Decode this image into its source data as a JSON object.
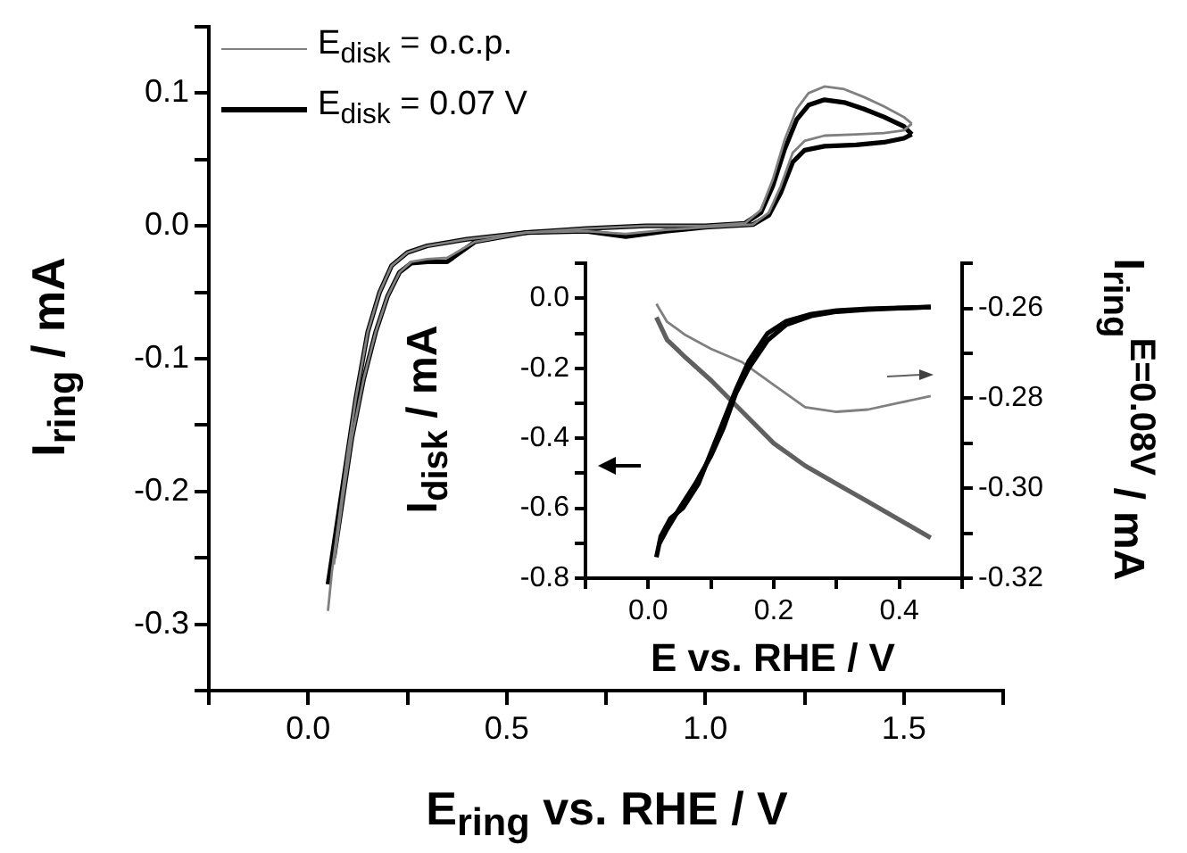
{
  "chart_data": [
    {
      "type": "line",
      "xlabel": "E$_{ring}$ vs. RHE / V",
      "ylabel": "I$_{ring}$ / mA",
      "xlim": [
        -0.25,
        1.75
      ],
      "xticks": [
        {
          "value": -0.25,
          "label": null
        },
        {
          "value": 0,
          "label": "0.0"
        },
        {
          "value": 0.25,
          "label": null
        },
        {
          "value": 0.5,
          "label": "0.5"
        },
        {
          "value": 0.75,
          "label": null
        },
        {
          "value": 1,
          "label": "1.0"
        },
        {
          "value": 1.25,
          "label": null
        },
        {
          "value": 1.5,
          "label": "1.5"
        },
        {
          "value": 1.75,
          "label": null
        }
      ],
      "ylim": [
        -0.35,
        0.15
      ],
      "yticks": [
        {
          "value": -0.35,
          "label": null
        },
        -0.3,
        {
          "value": -0.25,
          "label": null
        },
        -0.2,
        {
          "value": -0.15,
          "label": null
        },
        -0.1,
        {
          "value": -0.05,
          "label": null
        },
        {
          "value": 0,
          "label": "0.0"
        },
        {
          "value": 0.05,
          "label": null
        },
        0.1,
        {
          "value": 0.15,
          "label": null
        }
      ],
      "grid": false,
      "legend": "top left",
      "marker": "none",
      "line_style": "solid",
      "series": [
        {
          "name": "E$_{disk}$ = o.c.p.",
          "color": "#808080",
          "x": [
            0.05,
            0.06,
            0.08,
            0.1,
            0.12,
            0.15,
            0.18,
            0.21,
            0.25,
            0.3,
            0.4,
            0.55,
            0.7,
            0.85,
            1.0,
            1.1,
            1.14,
            1.17,
            1.2,
            1.23,
            1.26,
            1.3,
            1.35,
            1.4,
            1.45,
            1.5,
            1.52
          ],
          "values": [
            -0.29,
            -0.26,
            -0.215,
            -0.17,
            -0.13,
            -0.08,
            -0.05,
            -0.03,
            -0.02,
            -0.015,
            -0.01,
            -0.005,
            -0.002,
            0.0,
            0.0,
            0.002,
            0.012,
            0.035,
            0.065,
            0.088,
            0.1,
            0.105,
            0.103,
            0.097,
            0.09,
            0.082,
            0.077
          ]
        },
        {
          "color": "#808080",
          "x": [
            0.065,
            0.085,
            0.11,
            0.14,
            0.17,
            0.2,
            0.23,
            0.26,
            0.3,
            0.35,
            0.42,
            0.55,
            0.7,
            0.8,
            0.9,
            1.0,
            1.12,
            1.16,
            1.19,
            1.22,
            1.25,
            1.3,
            1.38,
            1.45,
            1.5,
            1.52
          ],
          "values": [
            -0.255,
            -0.21,
            -0.16,
            -0.115,
            -0.08,
            -0.053,
            -0.035,
            -0.027,
            -0.025,
            -0.024,
            -0.012,
            -0.005,
            -0.004,
            -0.006,
            -0.003,
            -0.001,
            0.001,
            0.01,
            0.03,
            0.055,
            0.064,
            0.068,
            0.069,
            0.07,
            0.072,
            0.077
          ]
        },
        {
          "name": "E$_{disk}$ = 0.07 V",
          "color": "#000000",
          "x": [
            0.05,
            0.06,
            0.08,
            0.1,
            0.12,
            0.15,
            0.18,
            0.21,
            0.25,
            0.3,
            0.4,
            0.55,
            0.7,
            0.85,
            1.0,
            1.1,
            1.14,
            1.17,
            1.2,
            1.23,
            1.26,
            1.3,
            1.35,
            1.4,
            1.45,
            1.5,
            1.52
          ],
          "values": [
            -0.27,
            -0.25,
            -0.21,
            -0.17,
            -0.13,
            -0.08,
            -0.05,
            -0.03,
            -0.02,
            -0.015,
            -0.01,
            -0.005,
            -0.002,
            0.0,
            0.0,
            0.002,
            0.01,
            0.03,
            0.058,
            0.08,
            0.091,
            0.095,
            0.093,
            0.088,
            0.082,
            0.075,
            0.069
          ]
        },
        {
          "color": "#000000",
          "x": [
            0.065,
            0.085,
            0.11,
            0.14,
            0.17,
            0.2,
            0.23,
            0.26,
            0.3,
            0.35,
            0.42,
            0.55,
            0.7,
            0.8,
            0.9,
            1.0,
            1.12,
            1.16,
            1.19,
            1.22,
            1.25,
            1.3,
            1.38,
            1.45,
            1.5,
            1.52
          ],
          "values": [
            -0.25,
            -0.21,
            -0.16,
            -0.115,
            -0.08,
            -0.053,
            -0.035,
            -0.028,
            -0.027,
            -0.027,
            -0.012,
            -0.005,
            -0.004,
            -0.008,
            -0.004,
            -0.001,
            0.001,
            0.008,
            0.025,
            0.048,
            0.057,
            0.06,
            0.061,
            0.063,
            0.066,
            0.069
          ]
        }
      ]
    },
    {
      "type": "line",
      "xlabel": "E vs. RHE / V",
      "ylabel": "I$_{disk}$ / mA",
      "y2label": "I$_{ring}$$^{E=0.08V}$ / mA",
      "xlim": [
        -0.1,
        0.5
      ],
      "xticks": [
        {
          "value": -0.1,
          "label": null
        },
        {
          "value": 0,
          "label": "0.0"
        },
        {
          "value": 0.1,
          "label": null
        },
        0.2,
        {
          "value": 0.3,
          "label": null
        },
        0.4,
        {
          "value": 0.5,
          "label": null
        }
      ],
      "ylim": [
        -0.8,
        0.1
      ],
      "yticks": [
        -0.8,
        {
          "value": -0.7,
          "label": null
        },
        -0.6,
        {
          "value": -0.5,
          "label": null
        },
        -0.4,
        {
          "value": -0.3,
          "label": null
        },
        -0.2,
        {
          "value": -0.1,
          "label": null
        },
        {
          "value": 0,
          "label": "0.0"
        },
        {
          "value": 0.1,
          "label": null
        }
      ],
      "y2lim": [
        -0.32,
        -0.25
      ],
      "y2ticks": [
        -0.32,
        {
          "value": -0.31,
          "label": null
        },
        {
          "value": -0.3,
          "label": "-0.30"
        },
        {
          "value": -0.29,
          "label": null
        },
        -0.28,
        {
          "value": -0.27,
          "label": null
        },
        -0.26,
        {
          "value": -0.25,
          "label": null
        }
      ],
      "grid": false,
      "legend": false,
      "marker": "none",
      "line_style": "solid",
      "series": [
        {
          "color": "#000000",
          "x": [
            0.013,
            0.02,
            0.035,
            0.055,
            0.08,
            0.1,
            0.12,
            0.14,
            0.16,
            0.19,
            0.22,
            0.26,
            0.3,
            0.35,
            0.4,
            0.45
          ],
          "values": [
            -0.74,
            -0.68,
            -0.63,
            -0.6,
            -0.53,
            -0.44,
            -0.35,
            -0.26,
            -0.18,
            -0.1,
            -0.065,
            -0.045,
            -0.035,
            -0.03,
            -0.027,
            -0.025
          ]
        },
        {
          "color": "#000000",
          "x": [
            0.018,
            0.03,
            0.05,
            0.075,
            0.1,
            0.12,
            0.14,
            0.16,
            0.19,
            0.22,
            0.26,
            0.3,
            0.35,
            0.4,
            0.45
          ],
          "values": [
            -0.7,
            -0.66,
            -0.6,
            -0.53,
            -0.45,
            -0.37,
            -0.27,
            -0.2,
            -0.12,
            -0.075,
            -0.05,
            -0.038,
            -0.032,
            -0.028,
            -0.025
          ]
        },
        {
          "color": "#808080",
          "axis": "y2",
          "x": [
            0.013,
            0.03,
            0.06,
            0.1,
            0.15,
            0.2,
            0.25,
            0.3,
            0.35,
            0.4,
            0.45
          ],
          "values": [
            -0.259,
            -0.263,
            -0.266,
            -0.269,
            -0.272,
            -0.277,
            -0.282,
            -0.283,
            -0.2825,
            -0.281,
            -0.2795
          ]
        },
        {
          "color": "#606060",
          "axis": "y2",
          "x": [
            0.013,
            0.03,
            0.06,
            0.1,
            0.15,
            0.2,
            0.25,
            0.3,
            0.35,
            0.4,
            0.45
          ],
          "values": [
            -0.262,
            -0.267,
            -0.271,
            -0.276,
            -0.283,
            -0.29,
            -0.295,
            -0.299,
            -0.303,
            -0.307,
            -0.311
          ]
        }
      ]
    }
  ]
}
